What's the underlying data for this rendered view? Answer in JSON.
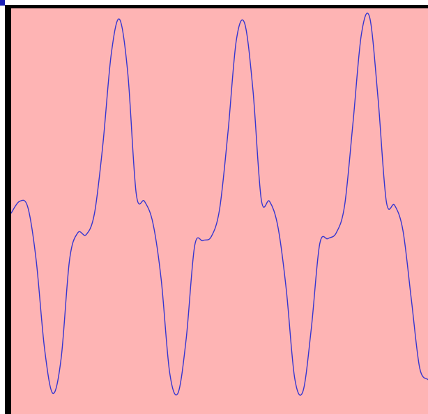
{
  "colors": {
    "background": "#FEB4B4",
    "frame": "#000000",
    "trace": "#3535D0",
    "corner_marker": "#1A20B8"
  },
  "chart_data": {
    "type": "line",
    "title": "",
    "xlabel": "",
    "ylabel": "",
    "grid": false,
    "legend": "none",
    "xlim": [
      0,
      1
    ],
    "ylim": [
      -1,
      1
    ],
    "series": [
      {
        "name": "",
        "x": [
          0.0,
          0.02,
          0.04,
          0.06,
          0.08,
          0.1,
          0.12,
          0.14,
          0.16,
          0.18,
          0.2,
          0.22,
          0.24,
          0.26,
          0.28,
          0.3,
          0.32,
          0.34,
          0.36,
          0.38,
          0.4,
          0.42,
          0.44,
          0.46,
          0.48,
          0.5,
          0.52,
          0.54,
          0.56,
          0.58,
          0.6,
          0.62,
          0.64,
          0.66,
          0.68,
          0.7,
          0.72,
          0.74,
          0.76,
          0.78,
          0.8,
          0.82,
          0.84,
          0.86,
          0.88,
          0.9,
          0.92,
          0.94,
          0.96,
          0.98,
          1.0
        ],
        "y": [
          -0.01,
          0.05,
          0.02,
          -0.25,
          -0.7,
          -0.93,
          -0.75,
          -0.25,
          -0.11,
          -0.12,
          -0.01,
          0.34,
          0.8,
          0.98,
          0.7,
          0.09,
          0.05,
          -0.06,
          -0.35,
          -0.82,
          -0.93,
          -0.65,
          -0.18,
          -0.15,
          -0.13,
          0.01,
          0.4,
          0.87,
          0.96,
          0.62,
          0.06,
          0.05,
          -0.08,
          -0.4,
          -0.85,
          -0.92,
          -0.6,
          -0.17,
          -0.14,
          -0.11,
          0.03,
          0.45,
          0.9,
          0.99,
          0.58,
          0.05,
          0.03,
          -0.1,
          -0.45,
          -0.8,
          -0.86
        ]
      }
    ]
  }
}
